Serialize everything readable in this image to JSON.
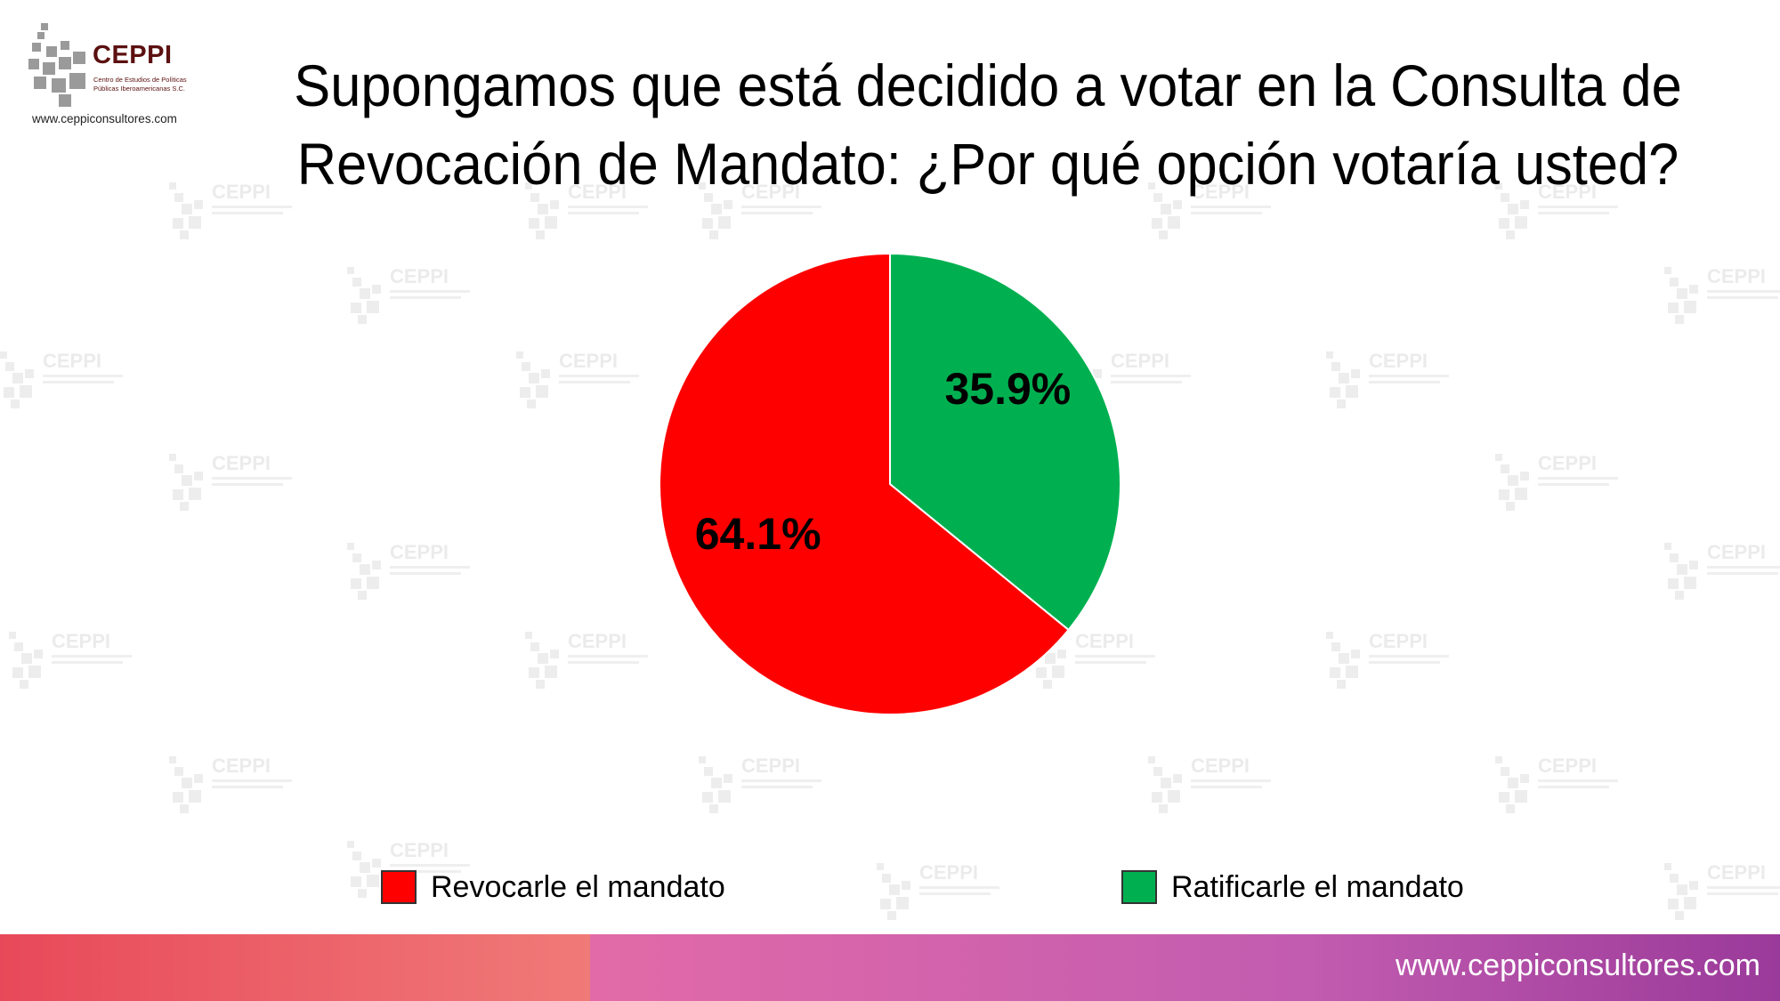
{
  "logo": {
    "name": "CEPPI",
    "subtitle_line1": "Centro de Estudios de Políticas",
    "subtitle_line2": "Públicas Iberoamericanas S.C.",
    "url": "www.ceppiconsultores.com"
  },
  "title_line1": "Supongamos que está decidido a votar en la Consulta de",
  "title_line2": "Revocación de Mandato: ¿Por qué opción votaría usted?",
  "footer": {
    "url": "www.ceppiconsultores.com"
  },
  "colors": {
    "revocar": "#ff0000",
    "ratificar": "#00b050"
  },
  "chart_data": {
    "type": "pie",
    "title": "Supongamos que está decidido a votar en la Consulta de Revocación de Mandato: ¿Por qué opción votaría usted?",
    "categories": [
      "Revocarle el mandato",
      "Ratificarle el mandato"
    ],
    "values": [
      64.1,
      35.9
    ],
    "labels": [
      "64.1%",
      "35.9%"
    ],
    "legend_position": "bottom"
  }
}
